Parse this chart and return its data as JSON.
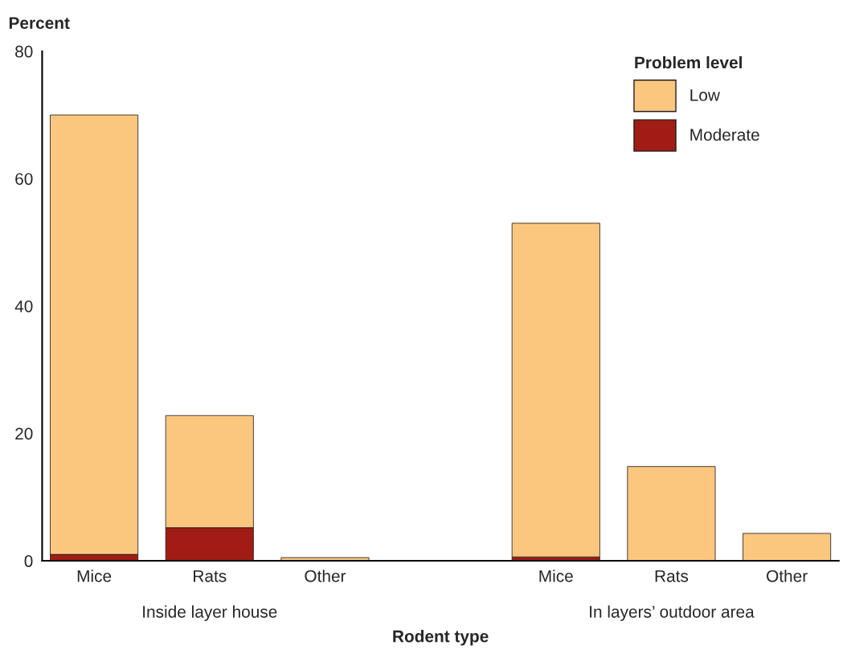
{
  "chart_data": {
    "type": "bar",
    "stacked": true,
    "xlabel": "Rodent type",
    "ylabel": "Percent",
    "legend_title": "Problem level",
    "legend": "top right",
    "categories": [
      "Mice",
      "Rats",
      "Other",
      null,
      "Mice",
      "Rats",
      "Other"
    ],
    "series": [
      {
        "name": "Moderate",
        "color": "#a01c14",
        "values": [
          1,
          5.2,
          0,
          null,
          0.6,
          0,
          0
        ]
      },
      {
        "name": "Low",
        "color": "#fbc77f",
        "values": [
          69,
          17.6,
          0.5,
          null,
          52.4,
          14.8,
          4.3
        ]
      }
    ],
    "ylim": [
      0,
      80
    ],
    "yticks": [
      0,
      20,
      40,
      60,
      80
    ],
    "grid": false,
    "annotations": [
      "Inside layer house",
      "In layers’ outdoor area"
    ]
  }
}
